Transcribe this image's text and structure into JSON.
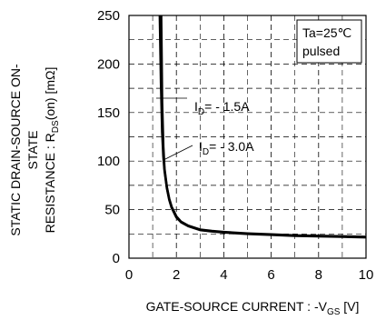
{
  "chart_data": {
    "type": "line",
    "xlim": [
      0,
      10
    ],
    "ylim": [
      0,
      250
    ],
    "x_ticks": [
      "0",
      "2",
      "4",
      "6",
      "8",
      "10"
    ],
    "y_ticks": [
      "0",
      "50",
      "100",
      "150",
      "200",
      "250"
    ],
    "grid": "dashed",
    "xlabel": {
      "main": "GATE-SOURCE CURRENT : -V",
      "sub": "GS",
      "unit": " [V]"
    },
    "ylabel": {
      "line1": "STATIC DRAIN-SOURCE ON-",
      "line2": "STATE",
      "line3_main": "RESISTANCE : R",
      "line3_sub": "DS",
      "line3_unit": "(on) [mΩ]"
    },
    "legend_box": {
      "line1": "Ta=25℃",
      "line2": "pulsed"
    },
    "annotations": [
      {
        "prefix": "I",
        "sub": "D",
        "text": "= - 1.5A"
      },
      {
        "prefix": "I",
        "sub": "D",
        "text": "= - 3.0A"
      }
    ],
    "series": [
      {
        "x": [
          1.3,
          1.35,
          1.4,
          1.45,
          1.5,
          1.6,
          1.7,
          1.8,
          2.0,
          2.2,
          2.5,
          3.0,
          3.5,
          4.0,
          5.0,
          6.0,
          7.0,
          8.0,
          9.0,
          10.0
        ],
        "y": [
          250,
          180,
          130,
          105,
          90,
          72,
          60,
          52,
          42,
          37,
          33,
          29,
          27.5,
          26.5,
          25,
          24,
          23,
          22.5,
          22,
          21.5
        ]
      },
      {
        "x": [
          1.36,
          1.4,
          1.45,
          1.5,
          1.6,
          1.7,
          1.8,
          2.0,
          2.2,
          2.5,
          3.0,
          3.5,
          4.0,
          5.0,
          6.0,
          7.0,
          8.0,
          9.0,
          10.0
        ],
        "y": [
          250,
          160,
          115,
          92,
          73,
          61,
          53,
          43,
          37.5,
          33.5,
          29.5,
          28,
          27,
          25.5,
          24.5,
          23.5,
          23,
          22.5,
          22
        ]
      }
    ]
  }
}
